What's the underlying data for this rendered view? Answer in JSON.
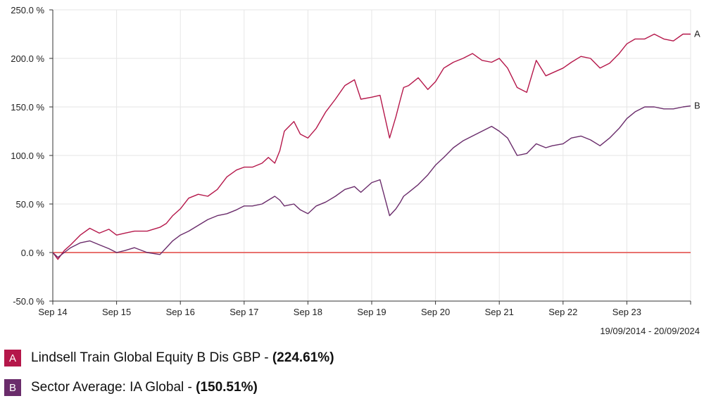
{
  "chart_data": {
    "type": "line",
    "title": "",
    "xlabel": "",
    "ylabel": "",
    "ylim": [
      -50,
      250
    ],
    "yticks": [
      -50,
      0,
      50,
      100,
      150,
      200,
      250
    ],
    "ytick_labels": [
      "-50.0 %",
      "0.0 %",
      "50.0 %",
      "100.0 %",
      "150.0 %",
      "200.0 %",
      "250.0 %"
    ],
    "xlim": [
      2014.72,
      2024.72
    ],
    "xticks": [
      2014.72,
      2015.72,
      2016.72,
      2017.72,
      2018.72,
      2019.72,
      2020.72,
      2021.72,
      2022.72,
      2023.72
    ],
    "xtick_labels": [
      "Sep 14",
      "Sep 15",
      "Sep 16",
      "Sep 17",
      "Sep 18",
      "Sep 19",
      "Sep 20",
      "Sep 21",
      "Sep 22",
      "Sep 23"
    ],
    "grid": true,
    "reference_line": {
      "y": 0,
      "color": "#e8726f"
    },
    "date_range": "19/09/2014 - 20/09/2024",
    "series": [
      {
        "key": "A",
        "name": "Lindsell Train Global Equity B Dis GBP",
        "final_return": "(224.61%)",
        "color": "#b5174a",
        "x": [
          2014.72,
          2014.8,
          2014.9,
          2015.0,
          2015.15,
          2015.3,
          2015.45,
          2015.6,
          2015.72,
          2015.85,
          2016.0,
          2016.2,
          2016.4,
          2016.5,
          2016.6,
          2016.72,
          2016.85,
          2017.0,
          2017.15,
          2017.3,
          2017.45,
          2017.6,
          2017.72,
          2017.85,
          2018.0,
          2018.1,
          2018.2,
          2018.28,
          2018.35,
          2018.5,
          2018.6,
          2018.72,
          2018.85,
          2019.0,
          2019.15,
          2019.3,
          2019.45,
          2019.55,
          2019.72,
          2019.85,
          2020.0,
          2020.1,
          2020.17,
          2020.22,
          2020.3,
          2020.45,
          2020.6,
          2020.72,
          2020.85,
          2021.0,
          2021.15,
          2021.3,
          2021.45,
          2021.6,
          2021.72,
          2021.85,
          2022.0,
          2022.15,
          2022.3,
          2022.45,
          2022.55,
          2022.72,
          2022.85,
          2023.0,
          2023.15,
          2023.3,
          2023.45,
          2023.6,
          2023.72,
          2023.85,
          2024.0,
          2024.15,
          2024.3,
          2024.45,
          2024.6,
          2024.72
        ],
        "values": [
          0,
          -7,
          2,
          8,
          18,
          25,
          20,
          24,
          18,
          20,
          22,
          22,
          26,
          30,
          38,
          45,
          56,
          60,
          58,
          65,
          78,
          85,
          88,
          88,
          92,
          98,
          92,
          105,
          125,
          135,
          122,
          118,
          128,
          145,
          158,
          172,
          178,
          158,
          160,
          162,
          118,
          140,
          158,
          170,
          172,
          180,
          168,
          176,
          190,
          196,
          200,
          205,
          198,
          196,
          200,
          190,
          170,
          165,
          198,
          182,
          185,
          190,
          196,
          202,
          200,
          190,
          195,
          205,
          215,
          220,
          220,
          225,
          220,
          218,
          225,
          225
        ]
      },
      {
        "key": "B",
        "name": "Sector Average: IA Global",
        "final_return": "(150.51%)",
        "color": "#6a2c6b",
        "x": [
          2014.72,
          2014.8,
          2014.9,
          2015.0,
          2015.15,
          2015.3,
          2015.45,
          2015.6,
          2015.72,
          2015.85,
          2016.0,
          2016.2,
          2016.4,
          2016.5,
          2016.6,
          2016.72,
          2016.85,
          2017.0,
          2017.15,
          2017.3,
          2017.45,
          2017.6,
          2017.72,
          2017.85,
          2018.0,
          2018.1,
          2018.2,
          2018.28,
          2018.35,
          2018.5,
          2018.6,
          2018.72,
          2018.85,
          2019.0,
          2019.15,
          2019.3,
          2019.45,
          2019.55,
          2019.72,
          2019.85,
          2020.0,
          2020.1,
          2020.17,
          2020.22,
          2020.3,
          2020.45,
          2020.6,
          2020.72,
          2020.85,
          2021.0,
          2021.15,
          2021.3,
          2021.45,
          2021.6,
          2021.72,
          2021.85,
          2022.0,
          2022.15,
          2022.3,
          2022.45,
          2022.55,
          2022.72,
          2022.85,
          2023.0,
          2023.15,
          2023.3,
          2023.45,
          2023.6,
          2023.72,
          2023.85,
          2024.0,
          2024.15,
          2024.3,
          2024.45,
          2024.6,
          2024.72
        ],
        "values": [
          0,
          -5,
          0,
          5,
          10,
          12,
          8,
          4,
          0,
          2,
          5,
          0,
          -2,
          5,
          12,
          18,
          22,
          28,
          34,
          38,
          40,
          44,
          48,
          48,
          50,
          54,
          58,
          54,
          48,
          50,
          44,
          40,
          48,
          52,
          58,
          65,
          68,
          62,
          72,
          75,
          38,
          45,
          52,
          58,
          62,
          70,
          80,
          90,
          98,
          108,
          115,
          120,
          125,
          130,
          125,
          118,
          100,
          102,
          112,
          108,
          110,
          112,
          118,
          120,
          116,
          110,
          118,
          128,
          138,
          145,
          150,
          150,
          148,
          148,
          150,
          151
        ]
      }
    ]
  },
  "legend": {
    "items": [
      {
        "badge": "A",
        "label": "Lindsell Train Global Equity B Dis GBP - ",
        "value": "(224.61%)"
      },
      {
        "badge": "B",
        "label": "Sector Average: IA Global - ",
        "value": "(150.51%)"
      }
    ]
  },
  "colors": {
    "grid": "#e6e6e6",
    "axis": "#333333",
    "text": "#222222"
  }
}
